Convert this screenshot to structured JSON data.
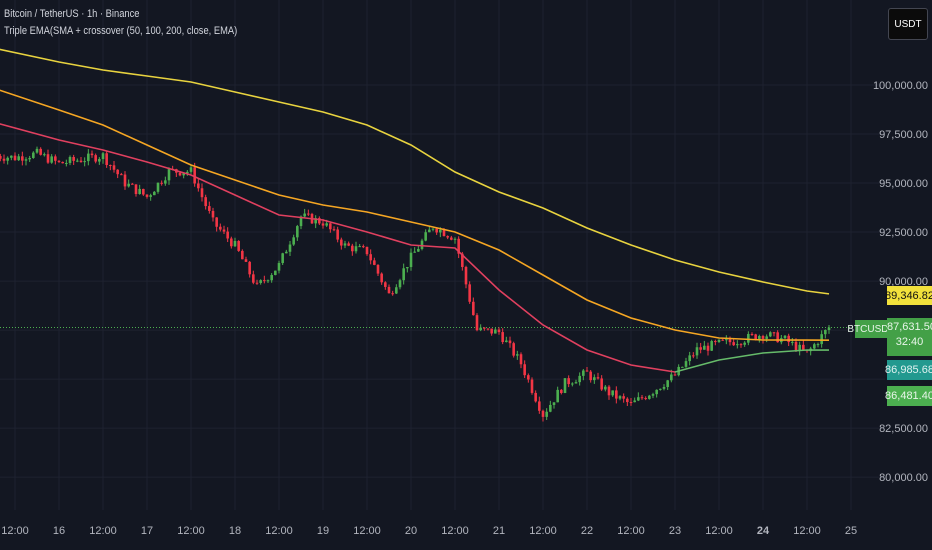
{
  "header": {
    "symbol_line": "Bitcoin / TetherUS · 1h · Binance",
    "indicator_line": "Triple EMA(SMA + crossover (50, 100, 200, close, EMA)"
  },
  "currency_button": "USDT",
  "price_tags": {
    "ema200": "89,346.82",
    "symbol": "BTCUSDT",
    "last_price": "87,631.50",
    "countdown": "32:40",
    "ema100": "86,985.68",
    "ema50": "86,481.40"
  },
  "colors": {
    "background": "#131722",
    "up": "#4caf50",
    "down": "#f23645",
    "ema50": "#e0405f",
    "ema50_after_cross": "#66bb6a",
    "ema100": "#f5a623",
    "ema200": "#e8d33f",
    "ema100_tag": "#26a69a"
  },
  "chart_data": {
    "type": "candlestick",
    "title": "Bitcoin / TetherUS · 1h · Binance",
    "y_ticks": [
      "100,000.00",
      "97,500.00",
      "95,000.00",
      "92,500.00",
      "90,000.00",
      "82,500.00",
      "80,000.00"
    ],
    "y_tick_values": [
      100000,
      97500,
      95000,
      92500,
      90000,
      82500,
      80000
    ],
    "x_ticks": [
      "12:00",
      "16",
      "12:00",
      "17",
      "12:00",
      "18",
      "12:00",
      "19",
      "12:00",
      "20",
      "12:00",
      "21",
      "12:00",
      "22",
      "12:00",
      "23",
      "12:00",
      "24",
      "12:00",
      "25"
    ],
    "x_tick_times": [
      "15 12:00",
      "16 00:00",
      "16 12:00",
      "17 00:00",
      "17 12:00",
      "18 00:00",
      "18 12:00",
      "19 00:00",
      "19 12:00",
      "20 00:00",
      "20 12:00",
      "21 00:00",
      "21 12:00",
      "22 00:00",
      "22 12:00",
      "23 00:00",
      "23 12:00",
      "24 00:00",
      "24 12:00",
      "25 00:00"
    ],
    "grid": true,
    "close": {
      "x": [
        "15 06:00",
        "15 12:00",
        "15 18:00",
        "16 00:00",
        "16 06:00",
        "16 12:00",
        "16 18:00",
        "17 00:00",
        "17 06:00",
        "17 12:00",
        "17 18:00",
        "18 00:00",
        "18 06:00",
        "18 12:00",
        "18 18:00",
        "19 00:00",
        "19 06:00",
        "19 12:00",
        "19 18:00",
        "20 00:00",
        "20 06:00",
        "20 12:00",
        "20 18:00",
        "21 00:00",
        "21 06:00",
        "21 12:00",
        "21 18:00",
        "22 00:00",
        "22 06:00",
        "22 12:00",
        "22 18:00",
        "23 00:00",
        "23 06:00",
        "23 12:00",
        "23 18:00",
        "24 00:00",
        "24 06:00",
        "24 12:00",
        "24 18:00"
      ],
      "values": [
        96400,
        96300,
        96500,
        96000,
        96200,
        96400,
        95000,
        94300,
        95600,
        95600,
        93000,
        91800,
        89700,
        90800,
        93300,
        93000,
        91800,
        91500,
        89300,
        91200,
        92800,
        92200,
        87500,
        87400,
        85800,
        83200,
        84800,
        85300,
        84300,
        83700,
        84400,
        85200,
        86500,
        86800,
        87000,
        87300,
        87000,
        86300,
        87631.5
      ]
    },
    "series": [
      {
        "name": "EMA 200",
        "x": [
          "15 06:00",
          "16 00:00",
          "16 12:00",
          "17 00:00",
          "17 12:00",
          "18 00:00",
          "18 12:00",
          "19 00:00",
          "19 12:00",
          "20 00:00",
          "20 12:00",
          "21 00:00",
          "21 12:00",
          "22 00:00",
          "22 12:00",
          "23 00:00",
          "23 12:00",
          "24 00:00",
          "24 12:00",
          "24 18:00"
        ],
        "values": [
          101887,
          101173,
          100765,
          100459,
          100153,
          99643,
          99133,
          98623,
          97960,
          96940,
          95563,
          94543,
          93727,
          92707,
          91840,
          91075,
          90463,
          89953,
          89494,
          89346.82
        ]
      },
      {
        "name": "EMA 100",
        "x": [
          "15 06:00",
          "16 00:00",
          "16 12:00",
          "17 00:00",
          "17 12:00",
          "18 00:00",
          "18 12:00",
          "19 00:00",
          "19 12:00",
          "20 00:00",
          "20 12:00",
          "21 00:00",
          "21 12:00",
          "22 00:00",
          "22 12:00",
          "23 00:00",
          "23 12:00",
          "24 00:00",
          "24 12:00",
          "24 18:00"
        ],
        "values": [
          99847,
          98725,
          97960,
          96940,
          95920,
          95155,
          94390,
          93880,
          93523,
          93013,
          92503,
          91585,
          90310,
          89035,
          88117,
          87505,
          87097,
          86995,
          86990,
          86985.68
        ]
      },
      {
        "name": "EMA 50",
        "x": [
          "15 06:00",
          "16 00:00",
          "16 12:00",
          "17 00:00",
          "17 12:00",
          "18 00:00",
          "18 12:00",
          "19 00:00",
          "19 12:00",
          "20 00:00",
          "20 12:00",
          "21 00:00",
          "21 12:00",
          "22 00:00",
          "22 12:00",
          "23 00:00",
          "23 12:00",
          "24 00:00",
          "24 12:00",
          "24 18:00"
        ],
        "values": [
          98113,
          97195,
          96685,
          96073,
          95410,
          94390,
          93370,
          93115,
          92503,
          91840,
          91687,
          89545,
          87760,
          86485,
          85720,
          85363,
          85975,
          86332,
          86485,
          86481.4
        ]
      }
    ],
    "last_price": 87631.5
  }
}
